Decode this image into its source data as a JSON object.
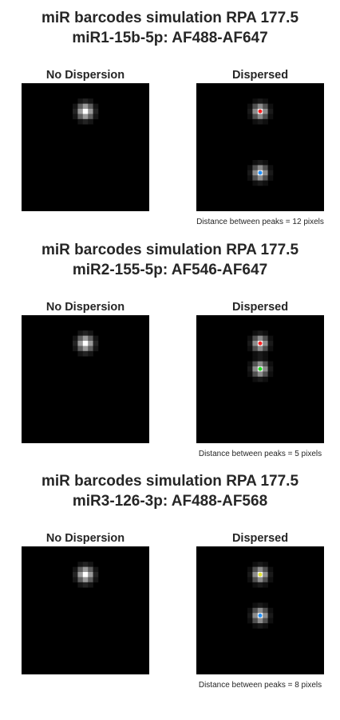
{
  "colors": {
    "background": "#ffffff",
    "image_background": "#000000",
    "marker_red": "#ff2020",
    "marker_blue": "#1e90ff",
    "marker_green": "#22dd22",
    "marker_yellow": "#e6e632"
  },
  "panels": [
    {
      "title_line1": "miR barcodes simulation RPA 177.5",
      "title_line2": "miR1-15b-5p: AF488-AF647",
      "left_title": "No Dispersion",
      "right_title": "Dispersed",
      "caption": "Distance between peaks = 12 pixels",
      "distance_pixels": 12,
      "markers": [
        "red",
        "blue"
      ]
    },
    {
      "title_line1": "miR barcodes simulation RPA 177.5",
      "title_line2": "miR2-155-5p: AF546-AF647",
      "left_title": "No Dispersion",
      "right_title": "Dispersed",
      "caption": "Distance between peaks = 5 pixels",
      "distance_pixels": 5,
      "markers": [
        "red",
        "green"
      ]
    },
    {
      "title_line1": "miR barcodes simulation RPA 177.5",
      "title_line2": "miR3-126-3p: AF488-AF568",
      "left_title": "No Dispersion",
      "right_title": "Dispersed",
      "caption": "Distance between peaks = 8 pixels",
      "distance_pixels": 8,
      "markers": [
        "yellow",
        "blue"
      ]
    }
  ]
}
